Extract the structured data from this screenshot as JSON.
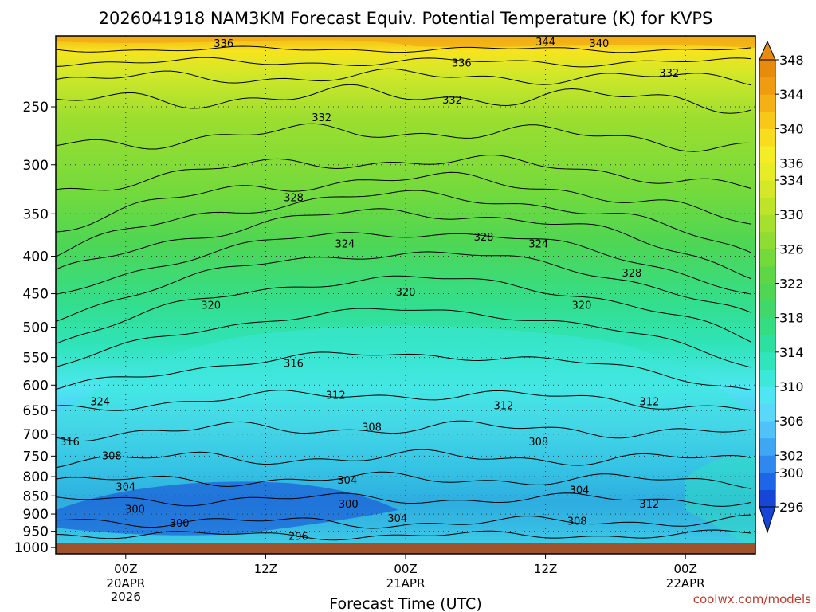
{
  "chart_data": {
    "type": "heatmap",
    "title": "2026041918 NAM3KM Forecast Equiv. Potential Temperature (K) for KVPS",
    "xlabel": "Forecast Time (UTC)",
    "ylabel": "",
    "y_scale": "log-pressure",
    "y_inverted": true,
    "y_ticks": [
      250,
      300,
      350,
      400,
      450,
      500,
      550,
      600,
      650,
      700,
      750,
      800,
      850,
      900,
      950,
      1000
    ],
    "x_range": [
      "2026-04-19T18Z",
      "2026-04-22T06Z"
    ],
    "x_ticks": [
      {
        "time": "2026-04-20T00Z",
        "hour": "00Z",
        "date": "20APR",
        "year": "2026"
      },
      {
        "time": "2026-04-20T12Z",
        "hour": "12Z",
        "date": "",
        "year": ""
      },
      {
        "time": "2026-04-21T00Z",
        "hour": "00Z",
        "date": "21APR",
        "year": ""
      },
      {
        "time": "2026-04-21T12Z",
        "hour": "12Z",
        "date": "",
        "year": ""
      },
      {
        "time": "2026-04-22T00Z",
        "hour": "00Z",
        "date": "22APR",
        "year": ""
      }
    ],
    "grid": true,
    "colorbar": {
      "placement": "right",
      "levels": [
        296,
        298,
        300,
        302,
        304,
        306,
        308,
        310,
        312,
        314,
        316,
        318,
        320,
        322,
        324,
        326,
        328,
        330,
        332,
        334,
        336,
        338,
        340,
        342,
        344,
        346,
        348
      ],
      "labels": [
        "348",
        "344",
        "340",
        "336",
        "334",
        "330",
        "326",
        "322",
        "318",
        "314",
        "310",
        "306",
        "302",
        "300",
        "296"
      ],
      "colors": [
        "#1546d6",
        "#1e66e8",
        "#2e88f0",
        "#3fa6f4",
        "#4fc3f8",
        "#5ad8fa",
        "#4ee6f2",
        "#3ce8d8",
        "#30e4bc",
        "#2ee0a0",
        "#34dc84",
        "#40d86a",
        "#4ed654",
        "#5ed646",
        "#74da3c",
        "#8edc34",
        "#a6e02e",
        "#bee42a",
        "#d4e828",
        "#e6ec26",
        "#f4ec24",
        "#f8dc1e",
        "#f8c818",
        "#f4b014",
        "#f09c10",
        "#e88a0c"
      ]
    },
    "contour_labels": [
      {
        "value": "336",
        "time_h": 8.4,
        "p": 205
      },
      {
        "value": "344",
        "time_h": 36.0,
        "p": 204
      },
      {
        "value": "340",
        "time_h": 40.6,
        "p": 205
      },
      {
        "value": "336",
        "time_h": 28.8,
        "p": 218
      },
      {
        "value": "332",
        "time_h": 46.6,
        "p": 225
      },
      {
        "value": "332",
        "time_h": 28.0,
        "p": 245
      },
      {
        "value": "332",
        "time_h": 16.8,
        "p": 259
      },
      {
        "value": "328",
        "time_h": 14.4,
        "p": 333
      },
      {
        "value": "328",
        "time_h": 30.7,
        "p": 377
      },
      {
        "value": "324",
        "time_h": 18.8,
        "p": 385
      },
      {
        "value": "324",
        "time_h": 35.4,
        "p": 385
      },
      {
        "value": "328",
        "time_h": 43.4,
        "p": 422
      },
      {
        "value": "320",
        "time_h": 7.3,
        "p": 467
      },
      {
        "value": "320",
        "time_h": 24.0,
        "p": 448
      },
      {
        "value": "320",
        "time_h": 39.1,
        "p": 467
      },
      {
        "value": "316",
        "time_h": 14.4,
        "p": 561
      },
      {
        "value": "312",
        "time_h": 18.0,
        "p": 620
      },
      {
        "value": "312",
        "time_h": 32.4,
        "p": 641
      },
      {
        "value": "312",
        "time_h": 44.9,
        "p": 633
      },
      {
        "value": "324",
        "time_h": -2.2,
        "p": 633
      },
      {
        "value": "308",
        "time_h": 21.1,
        "p": 686
      },
      {
        "value": "308",
        "time_h": 35.4,
        "p": 718
      },
      {
        "value": "316",
        "time_h": -4.8,
        "p": 718
      },
      {
        "value": "308",
        "time_h": -1.2,
        "p": 750
      },
      {
        "value": "304",
        "time_h": 0.0,
        "p": 827
      },
      {
        "value": "304",
        "time_h": 19.0,
        "p": 810
      },
      {
        "value": "304",
        "time_h": 38.9,
        "p": 836
      },
      {
        "value": "300",
        "time_h": 0.8,
        "p": 888
      },
      {
        "value": "300",
        "time_h": 19.1,
        "p": 873
      },
      {
        "value": "312",
        "time_h": 44.9,
        "p": 873
      },
      {
        "value": "304",
        "time_h": 23.3,
        "p": 914
      },
      {
        "value": "300",
        "time_h": 4.6,
        "p": 927
      },
      {
        "value": "308",
        "time_h": 38.7,
        "p": 921
      },
      {
        "value": "296",
        "time_h": 14.8,
        "p": 967
      }
    ]
  },
  "branding": {
    "credit": "coolwx.com/models"
  },
  "colors": {
    "ground": "#a0522d",
    "axis": "#000000",
    "grid": "#333333"
  }
}
